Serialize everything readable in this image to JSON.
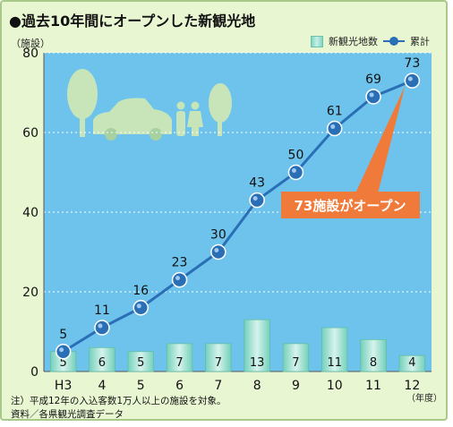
{
  "title": "●過去10年間にオープンした新観光地",
  "y_unit": "（施設）",
  "x_unit": "（年度）",
  "legend": {
    "bar": "新観光地数",
    "line": "累計"
  },
  "callout": "73施設がオープン",
  "notes": [
    "注）平成12年の入込客数1万人以上の施設を対象。",
    "資料／各県観光調査データ"
  ],
  "colors": {
    "plot_bg": "#6ec3ec",
    "line": "#2a6fb5",
    "callout": "#f07a3a",
    "silhouette": "#c7e5b8"
  },
  "chart_data": {
    "type": "bar+line",
    "categories": [
      "H3",
      "4",
      "5",
      "6",
      "7",
      "8",
      "9",
      "10",
      "11",
      "12"
    ],
    "series": [
      {
        "name": "新観光地数",
        "type": "bar",
        "values": [
          5,
          6,
          5,
          7,
          7,
          13,
          7,
          11,
          8,
          4
        ]
      },
      {
        "name": "累計",
        "type": "line",
        "values": [
          5,
          11,
          16,
          23,
          30,
          43,
          50,
          61,
          69,
          73
        ]
      }
    ],
    "ylim": [
      0,
      80
    ],
    "yticks": [
      0,
      20,
      40,
      60,
      80
    ],
    "grid": true,
    "legend_position": "top-right"
  }
}
